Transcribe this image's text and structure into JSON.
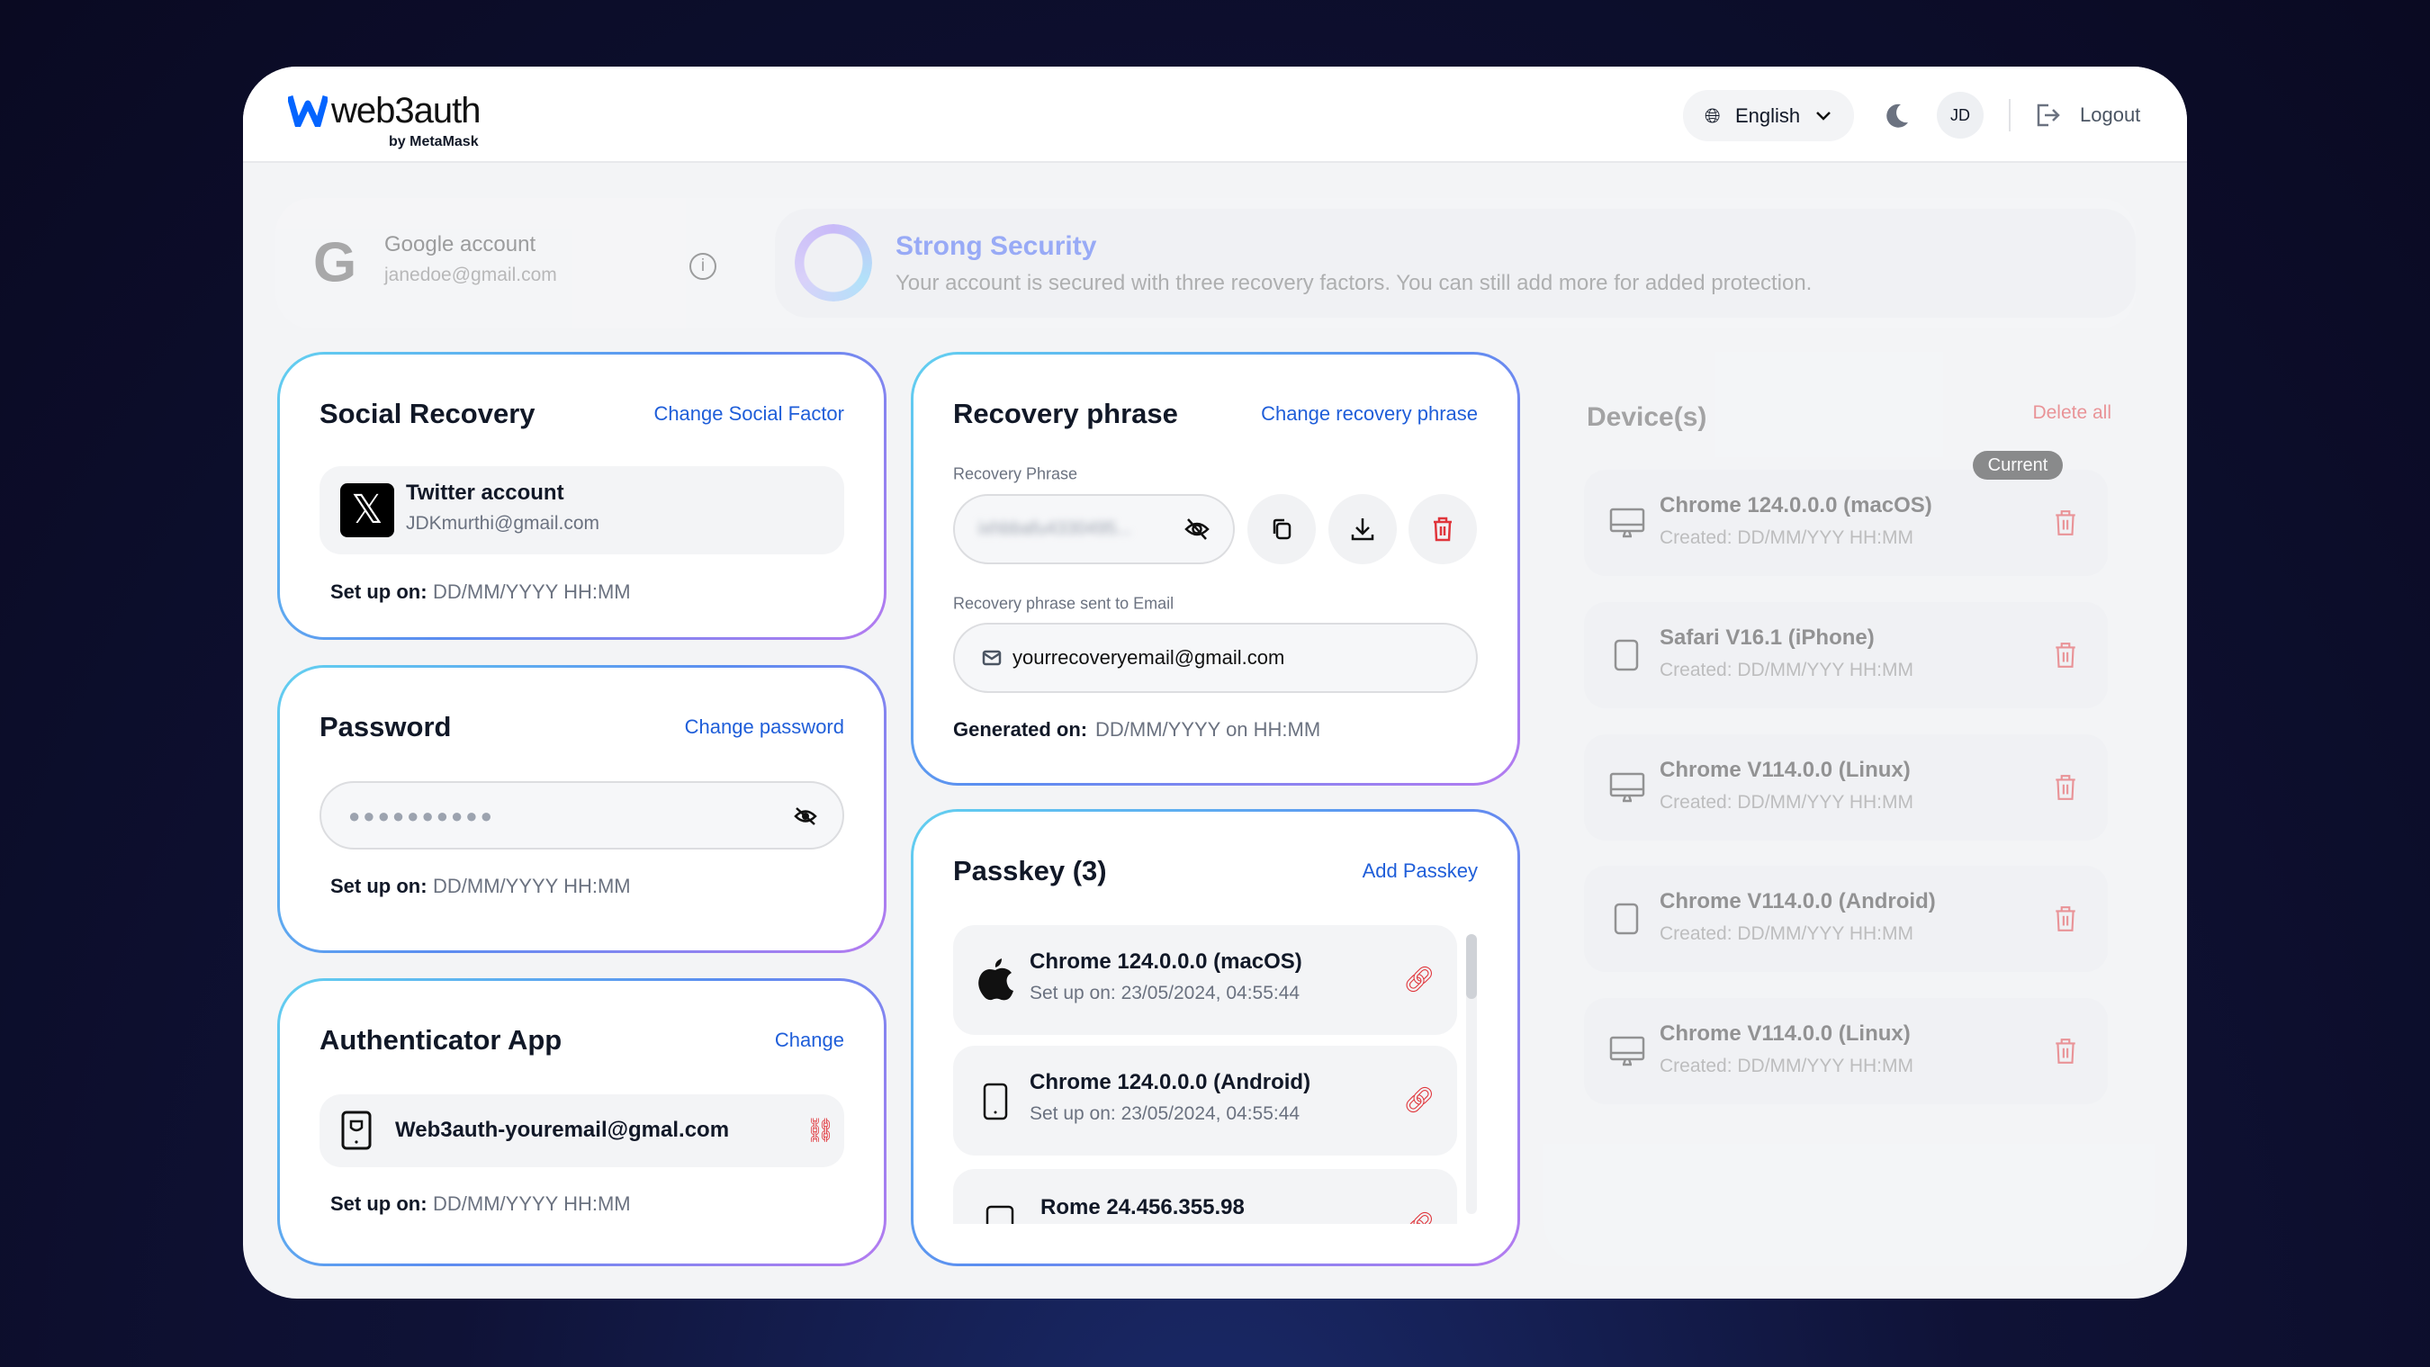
{
  "header": {
    "logo_text": "web3auth",
    "logo_sub": "by MetaMask",
    "language": "English",
    "avatar_initials": "JD",
    "logout": "Logout"
  },
  "account": {
    "provider": "Google account",
    "email": "janedoe@gmail.com"
  },
  "security": {
    "title": "Strong Security",
    "description": "Your account is secured with three recovery factors. You can still add more for added protection."
  },
  "social": {
    "title": "Social Recovery",
    "link": "Change Social Factor",
    "account_name": "Twitter account",
    "account_email": "JDKmurthi@gmail.com",
    "setup_label": "Set up on:",
    "setup_value": "DD/MM/YYYY HH:MM"
  },
  "password": {
    "title": "Password",
    "link": "Change password",
    "masked": "●●●●●●●●●●",
    "setup_label": "Set up on:",
    "setup_value": "DD/MM/YYYY HH:MM"
  },
  "authenticator": {
    "title": "Authenticator App",
    "link": "Change",
    "account": "Web3auth-youremail@gmal.com",
    "setup_label": "Set up on:",
    "setup_value": "DD/MM/YYYY HH:MM"
  },
  "recovery": {
    "title": "Recovery phrase",
    "link": "Change recovery phrase",
    "phrase_label": "Recovery Phrase",
    "phrase_blurred": "ixhbbafu4330495...",
    "email_label": "Recovery phrase sent to Email",
    "email": "yourrecoveryemail@gmail.com",
    "generated_label": "Generated on:",
    "generated_value": "DD/MM/YYYY on HH:MM"
  },
  "passkey": {
    "title": "Passkey (3)",
    "link": "Add Passkey",
    "items": [
      {
        "name": "Chrome 124.0.0.0 (macOS)",
        "setup": "Set up on: 23/05/2024, 04:55:44",
        "icon": "apple-icon"
      },
      {
        "name": "Chrome 124.0.0.0 (Android)",
        "setup": "Set up on: 23/05/2024, 04:55:44",
        "icon": "phone-icon"
      },
      {
        "name": "Rome 24.456.355.98",
        "icon": "phone-icon"
      }
    ]
  },
  "devices": {
    "title": "Device(s)",
    "delete_all": "Delete all",
    "current_badge": "Current",
    "items": [
      {
        "name": "Chrome 124.0.0.0 (macOS)",
        "created": "Created: DD/MM/YYY HH:MM",
        "icon": "desktop-icon"
      },
      {
        "name": "Safari V16.1 (iPhone)",
        "created": "Created: DD/MM/YYY HH:MM",
        "icon": "phone-icon"
      },
      {
        "name": "Chrome V114.0.0 (Linux)",
        "created": "Created: DD/MM/YYY HH:MM",
        "icon": "desktop-icon"
      },
      {
        "name": "Chrome V114.0.0 (Android)",
        "created": "Created: DD/MM/YYY HH:MM",
        "icon": "phone-icon"
      },
      {
        "name": "Chrome V114.0.0 (Linux)",
        "created": "Created: DD/MM/YYY HH:MM",
        "icon": "desktop-icon"
      }
    ]
  },
  "colors": {
    "link": "#1f5ed9",
    "danger": "#e0353b",
    "brand": "#0364ff"
  }
}
